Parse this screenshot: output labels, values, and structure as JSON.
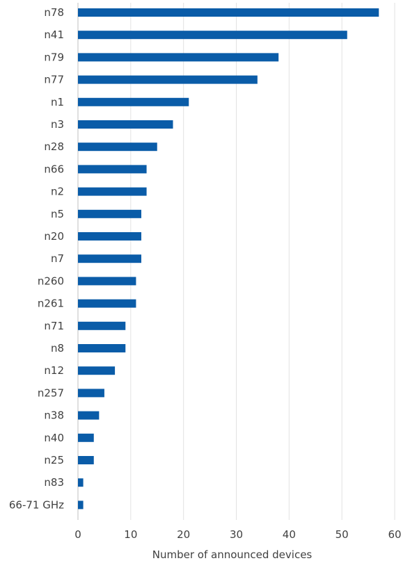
{
  "chart_data": {
    "type": "bar",
    "orientation": "horizontal",
    "categories": [
      "n78",
      "n41",
      "n79",
      "n77",
      "n1",
      "n3",
      "n28",
      "n66",
      "n2",
      "n5",
      "n20",
      "n7",
      "n260",
      "n261",
      "n71",
      "n8",
      "n12",
      "n257",
      "n38",
      "n40",
      "n25",
      "n83",
      "66-71 GHz"
    ],
    "values": [
      57,
      51,
      38,
      34,
      21,
      18,
      15,
      13,
      13,
      12,
      12,
      12,
      11,
      11,
      9,
      9,
      7,
      5,
      4,
      3,
      3,
      1,
      1
    ],
    "xlabel": "Number of announced devices",
    "ylabel": "",
    "xlim": [
      0,
      60
    ],
    "xticks": [
      0,
      10,
      20,
      30,
      40,
      50,
      60
    ],
    "grid": "vertical",
    "legend": "none",
    "bar_color": "#0a5ca8",
    "grid_color": "#e2e2e2",
    "text_color": "#404040"
  }
}
